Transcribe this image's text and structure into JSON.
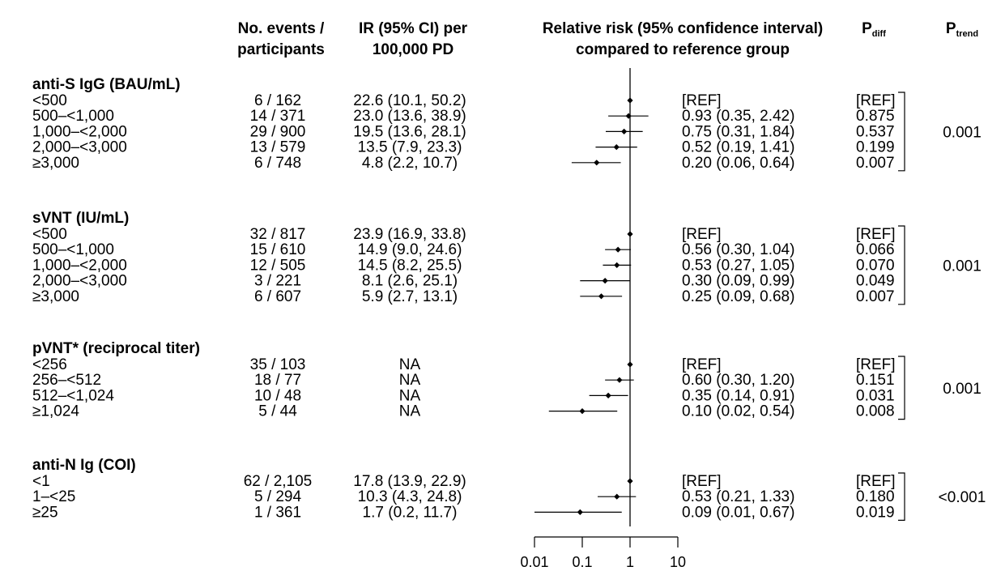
{
  "headers": {
    "events_line1": "No. events /",
    "events_line2": "participants",
    "ir_line1": "IR (95% CI) per",
    "ir_line2": "100,000 PD",
    "rr_line1": "Relative risk (95% confidence interval)",
    "rr_line2": "compared to reference group",
    "pdiff_main": "P",
    "pdiff_sub": "diff",
    "ptrend_main": "P",
    "ptrend_sub": "trend"
  },
  "chart_data": {
    "type": "forest",
    "x_scale": "log",
    "x_ticks": [
      0.01,
      0.1,
      1,
      10
    ],
    "x_tick_labels": [
      "0.01",
      "0.1",
      "1",
      "10"
    ],
    "reference_line": 1,
    "groups": [
      {
        "label": "anti-S IgG (BAU/mL)",
        "p_trend": "0.001",
        "rows": [
          {
            "category": "<500",
            "events": "6 / 162",
            "ir": "22.6 (10.1, 50.2)",
            "rr_text": "[REF]",
            "rr": 1,
            "lo": null,
            "hi": null,
            "p_diff": "[REF]"
          },
          {
            "category": "500–<1,000",
            "events": "14 / 371",
            "ir": "23.0 (13.6, 38.9)",
            "rr_text": "0.93 (0.35, 2.42)",
            "rr": 0.93,
            "lo": 0.35,
            "hi": 2.42,
            "p_diff": "0.875"
          },
          {
            "category": "1,000–<2,000",
            "events": "29 / 900",
            "ir": "19.5 (13.6, 28.1)",
            "rr_text": "0.75 (0.31, 1.84)",
            "rr": 0.75,
            "lo": 0.31,
            "hi": 1.84,
            "p_diff": "0.537"
          },
          {
            "category": "2,000–<3,000",
            "events": "13 / 579",
            "ir": "13.5 (7.9, 23.3)",
            "rr_text": "0.52 (0.19, 1.41)",
            "rr": 0.52,
            "lo": 0.19,
            "hi": 1.41,
            "p_diff": "0.199"
          },
          {
            "category": "≥3,000",
            "events": "6 / 748",
            "ir": "4.8 (2.2, 10.7)",
            "rr_text": "0.20 (0.06, 0.64)",
            "rr": 0.2,
            "lo": 0.06,
            "hi": 0.64,
            "p_diff": "0.007"
          }
        ]
      },
      {
        "label": "sVNT (IU/mL)",
        "p_trend": "0.001",
        "rows": [
          {
            "category": "<500",
            "events": "32 / 817",
            "ir": "23.9 (16.9, 33.8)",
            "rr_text": "[REF]",
            "rr": 1,
            "lo": null,
            "hi": null,
            "p_diff": "[REF]"
          },
          {
            "category": "500–<1,000",
            "events": "15 / 610",
            "ir": "14.9 (9.0, 24.6)",
            "rr_text": "0.56 (0.30, 1.04)",
            "rr": 0.56,
            "lo": 0.3,
            "hi": 1.04,
            "p_diff": "0.066"
          },
          {
            "category": "1,000–<2,000",
            "events": "12 / 505",
            "ir": "14.5 (8.2, 25.5)",
            "rr_text": "0.53 (0.27, 1.05)",
            "rr": 0.53,
            "lo": 0.27,
            "hi": 1.05,
            "p_diff": "0.070"
          },
          {
            "category": "2,000–<3,000",
            "events": "3 / 221",
            "ir": "8.1 (2.6, 25.1)",
            "rr_text": "0.30 (0.09, 0.99)",
            "rr": 0.3,
            "lo": 0.09,
            "hi": 0.99,
            "p_diff": "0.049"
          },
          {
            "category": "≥3,000",
            "events": "6 / 607",
            "ir": "5.9 (2.7, 13.1)",
            "rr_text": "0.25 (0.09, 0.68)",
            "rr": 0.25,
            "lo": 0.09,
            "hi": 0.68,
            "p_diff": "0.007"
          }
        ]
      },
      {
        "label": "pVNT* (reciprocal titer)",
        "p_trend": "0.001",
        "rows": [
          {
            "category": "<256",
            "events": "35 / 103",
            "ir": "NA",
            "rr_text": "[REF]",
            "rr": 1,
            "lo": null,
            "hi": null,
            "p_diff": "[REF]"
          },
          {
            "category": "256–<512",
            "events": "18 / 77",
            "ir": "NA",
            "rr_text": "0.60 (0.30, 1.20)",
            "rr": 0.6,
            "lo": 0.3,
            "hi": 1.2,
            "p_diff": "0.151"
          },
          {
            "category": "512–<1,024",
            "events": "10 / 48",
            "ir": "NA",
            "rr_text": "0.35 (0.14, 0.91)",
            "rr": 0.35,
            "lo": 0.14,
            "hi": 0.91,
            "p_diff": "0.031"
          },
          {
            "category": "≥1,024",
            "events": "5 / 44",
            "ir": "NA",
            "rr_text": "0.10 (0.02, 0.54)",
            "rr": 0.1,
            "lo": 0.02,
            "hi": 0.54,
            "p_diff": "0.008"
          }
        ]
      },
      {
        "label": "anti-N Ig (COI)",
        "p_trend": "<0.001",
        "rows": [
          {
            "category": "<1",
            "events": "62 / 2,105",
            "ir": "17.8 (13.9, 22.9)",
            "rr_text": "[REF]",
            "rr": 1,
            "lo": null,
            "hi": null,
            "p_diff": "[REF]"
          },
          {
            "category": "1–<25",
            "events": "5 / 294",
            "ir": "10.3 (4.3, 24.8)",
            "rr_text": "0.53 (0.21, 1.33)",
            "rr": 0.53,
            "lo": 0.21,
            "hi": 1.33,
            "p_diff": "0.180"
          },
          {
            "category": "≥25",
            "events": "1 / 361",
            "ir": "1.7 (0.2, 11.7)",
            "rr_text": "0.09 (0.01, 0.67)",
            "rr": 0.09,
            "lo": 0.01,
            "hi": 0.67,
            "p_diff": "0.019"
          }
        ]
      }
    ]
  }
}
